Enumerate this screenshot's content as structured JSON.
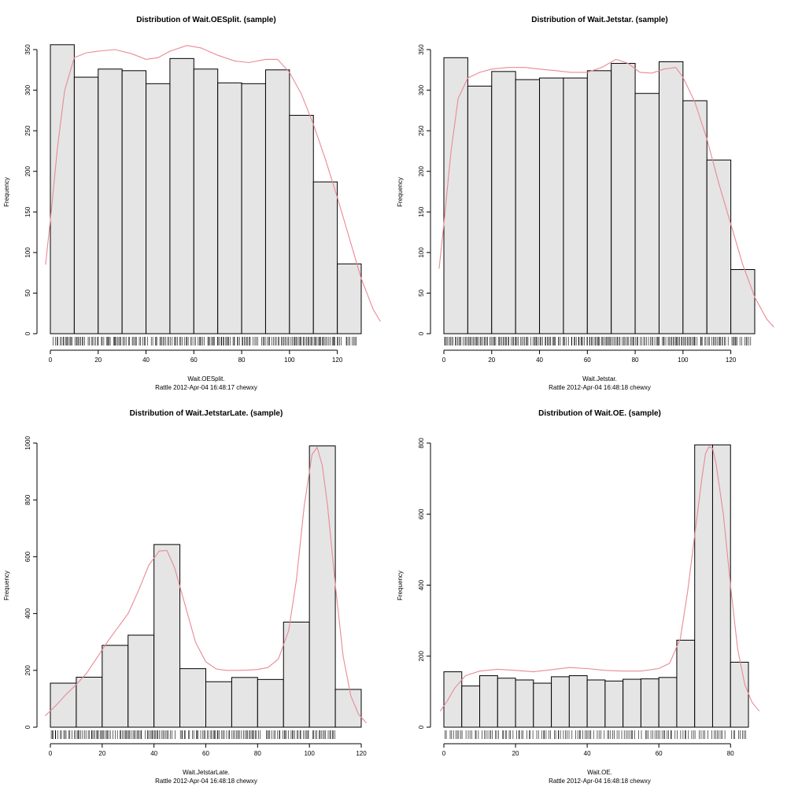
{
  "chart_data": [
    {
      "type": "bar",
      "title": "Distribution of Wait.OESplit. (sample)",
      "xlabel": "Wait.OESplit.",
      "ylabel": "Frequency",
      "caption": "Rattle 2012-Apr-04 16:48:17 chewxy",
      "xlim": [
        0,
        135
      ],
      "ylim": [
        0,
        360
      ],
      "xticks": [
        "0",
        "20",
        "40",
        "60",
        "80",
        "100",
        "120"
      ],
      "yticks": [
        "0",
        "50",
        "100",
        "150",
        "200",
        "250",
        "300",
        "350"
      ],
      "bins": [
        [
          0,
          10
        ],
        [
          10,
          20
        ],
        [
          20,
          30
        ],
        [
          30,
          40
        ],
        [
          40,
          50
        ],
        [
          50,
          60
        ],
        [
          60,
          70
        ],
        [
          70,
          80
        ],
        [
          80,
          90
        ],
        [
          90,
          100
        ],
        [
          100,
          110
        ],
        [
          110,
          120
        ],
        [
          120,
          130
        ]
      ],
      "values": [
        356,
        316,
        326,
        324,
        308,
        339,
        326,
        309,
        308,
        325,
        269,
        187,
        86
      ],
      "density": [
        [
          -2,
          85
        ],
        [
          0,
          140
        ],
        [
          3,
          230
        ],
        [
          6,
          300
        ],
        [
          10,
          340
        ],
        [
          15,
          346
        ],
        [
          20,
          348
        ],
        [
          27,
          350
        ],
        [
          34,
          345
        ],
        [
          40,
          338
        ],
        [
          45,
          340
        ],
        [
          50,
          348
        ],
        [
          57,
          355
        ],
        [
          63,
          352
        ],
        [
          70,
          343
        ],
        [
          77,
          336
        ],
        [
          83,
          334
        ],
        [
          90,
          338
        ],
        [
          95,
          338
        ],
        [
          100,
          322
        ],
        [
          105,
          295
        ],
        [
          110,
          258
        ],
        [
          115,
          215
        ],
        [
          120,
          168
        ],
        [
          125,
          118
        ],
        [
          130,
          68
        ],
        [
          135,
          30
        ],
        [
          138,
          15
        ]
      ],
      "rug_max": 128,
      "colors": {
        "bar_fill": "#e5e5e5",
        "bar_stroke": "#000000",
        "density": "#e88a96"
      }
    },
    {
      "type": "bar",
      "title": "Distribution of Wait.Jetstar. (sample)",
      "xlabel": "Wait.Jetstar.",
      "ylabel": "Frequency",
      "caption": "Rattle 2012-Apr-04 16:48:18 chewxy",
      "xlim": [
        0,
        135
      ],
      "ylim": [
        0,
        350
      ],
      "xticks": [
        "0",
        "20",
        "40",
        "60",
        "80",
        "100",
        "120"
      ],
      "yticks": [
        "0",
        "50",
        "100",
        "150",
        "200",
        "250",
        "300",
        "350"
      ],
      "bins": [
        [
          0,
          10
        ],
        [
          10,
          20
        ],
        [
          20,
          30
        ],
        [
          30,
          40
        ],
        [
          40,
          50
        ],
        [
          50,
          60
        ],
        [
          60,
          70
        ],
        [
          70,
          80
        ],
        [
          80,
          90
        ],
        [
          90,
          100
        ],
        [
          100,
          110
        ],
        [
          110,
          120
        ],
        [
          120,
          130
        ]
      ],
      "values": [
        340,
        305,
        323,
        313,
        315,
        315,
        324,
        333,
        296,
        335,
        287,
        214,
        79
      ],
      "density": [
        [
          -2,
          80
        ],
        [
          0,
          135
        ],
        [
          3,
          225
        ],
        [
          6,
          290
        ],
        [
          10,
          315
        ],
        [
          15,
          322
        ],
        [
          20,
          326
        ],
        [
          27,
          328
        ],
        [
          34,
          328
        ],
        [
          40,
          326
        ],
        [
          47,
          324
        ],
        [
          53,
          322
        ],
        [
          60,
          322
        ],
        [
          66,
          328
        ],
        [
          72,
          338
        ],
        [
          77,
          333
        ],
        [
          82,
          322
        ],
        [
          87,
          321
        ],
        [
          92,
          326
        ],
        [
          97,
          328
        ],
        [
          100,
          316
        ],
        [
          105,
          285
        ],
        [
          110,
          240
        ],
        [
          115,
          185
        ],
        [
          120,
          135
        ],
        [
          125,
          85
        ],
        [
          130,
          45
        ],
        [
          135,
          18
        ],
        [
          138,
          8
        ]
      ],
      "rug_max": 128,
      "colors": {
        "bar_fill": "#e5e5e5",
        "bar_stroke": "#000000",
        "density": "#e88a96"
      }
    },
    {
      "type": "bar",
      "title": "Distribution of Wait.JetstarLate. (sample)",
      "xlabel": "Wait.JetstarLate.",
      "ylabel": "Frequency",
      "caption": "Rattle 2012-Apr-04 16:48:18 chewxy",
      "xlim": [
        0,
        122
      ],
      "ylim": [
        0,
        1000
      ],
      "xticks": [
        "0",
        "20",
        "40",
        "60",
        "80",
        "100",
        "120"
      ],
      "yticks": [
        "0",
        "200",
        "400",
        "600",
        "800",
        "1000"
      ],
      "bins": [
        [
          0,
          10
        ],
        [
          10,
          20
        ],
        [
          20,
          30
        ],
        [
          30,
          40
        ],
        [
          40,
          50
        ],
        [
          50,
          60
        ],
        [
          60,
          70
        ],
        [
          70,
          80
        ],
        [
          80,
          90
        ],
        [
          90,
          100
        ],
        [
          100,
          110
        ],
        [
          110,
          120
        ]
      ],
      "values": [
        155,
        176,
        288,
        324,
        643,
        206,
        160,
        175,
        168,
        370,
        990,
        133
      ],
      "density": [
        [
          -2,
          40
        ],
        [
          2,
          75
        ],
        [
          6,
          115
        ],
        [
          10,
          150
        ],
        [
          14,
          190
        ],
        [
          18,
          245
        ],
        [
          22,
          300
        ],
        [
          26,
          350
        ],
        [
          30,
          400
        ],
        [
          34,
          480
        ],
        [
          38,
          570
        ],
        [
          42,
          620
        ],
        [
          45,
          622
        ],
        [
          48,
          560
        ],
        [
          52,
          430
        ],
        [
          56,
          300
        ],
        [
          60,
          230
        ],
        [
          64,
          205
        ],
        [
          68,
          200
        ],
        [
          72,
          200
        ],
        [
          76,
          201
        ],
        [
          80,
          203
        ],
        [
          84,
          210
        ],
        [
          88,
          240
        ],
        [
          92,
          340
        ],
        [
          95,
          520
        ],
        [
          98,
          780
        ],
        [
          101,
          960
        ],
        [
          103,
          985
        ],
        [
          105,
          920
        ],
        [
          107,
          780
        ],
        [
          110,
          500
        ],
        [
          113,
          250
        ],
        [
          116,
          110
        ],
        [
          119,
          45
        ],
        [
          122,
          15
        ]
      ],
      "rug_max": 110,
      "colors": {
        "bar_fill": "#e5e5e5",
        "bar_stroke": "#000000",
        "density": "#e88a96"
      }
    },
    {
      "type": "bar",
      "title": "Distribution of Wait.OE. (sample)",
      "xlabel": "Wait.OE.",
      "ylabel": "Frequency",
      "caption": "Rattle 2012-Apr-04 16:48:18 chewxy",
      "xlim": [
        0,
        87
      ],
      "ylim": [
        0,
        800
      ],
      "xticks": [
        "0",
        "20",
        "40",
        "60",
        "80"
      ],
      "yticks": [
        "0",
        "200",
        "400",
        "600",
        "800"
      ],
      "bins": [
        [
          0,
          5
        ],
        [
          5,
          10
        ],
        [
          10,
          15
        ],
        [
          15,
          20
        ],
        [
          20,
          25
        ],
        [
          25,
          30
        ],
        [
          30,
          35
        ],
        [
          35,
          40
        ],
        [
          40,
          45
        ],
        [
          45,
          50
        ],
        [
          50,
          55
        ],
        [
          55,
          60
        ],
        [
          60,
          65
        ],
        [
          65,
          70
        ],
        [
          70,
          75
        ],
        [
          75,
          80
        ],
        [
          80,
          85
        ]
      ],
      "values": [
        156,
        116,
        145,
        138,
        133,
        124,
        142,
        145,
        133,
        130,
        135,
        136,
        140,
        245,
        795,
        795,
        183
      ],
      "density": [
        [
          -1,
          45
        ],
        [
          1,
          75
        ],
        [
          3,
          110
        ],
        [
          6,
          145
        ],
        [
          10,
          158
        ],
        [
          15,
          163
        ],
        [
          20,
          160
        ],
        [
          25,
          156
        ],
        [
          30,
          162
        ],
        [
          35,
          168
        ],
        [
          40,
          165
        ],
        [
          45,
          160
        ],
        [
          50,
          158
        ],
        [
          55,
          158
        ],
        [
          60,
          165
        ],
        [
          63,
          180
        ],
        [
          66,
          250
        ],
        [
          68,
          380
        ],
        [
          70,
          540
        ],
        [
          72,
          700
        ],
        [
          73,
          770
        ],
        [
          74,
          790
        ],
        [
          75,
          785
        ],
        [
          76,
          740
        ],
        [
          78,
          600
        ],
        [
          80,
          400
        ],
        [
          82,
          220
        ],
        [
          84,
          120
        ],
        [
          86,
          70
        ],
        [
          88,
          45
        ]
      ],
      "rug_max": 84,
      "colors": {
        "bar_fill": "#e5e5e5",
        "bar_stroke": "#000000",
        "density": "#e88a96"
      }
    }
  ]
}
